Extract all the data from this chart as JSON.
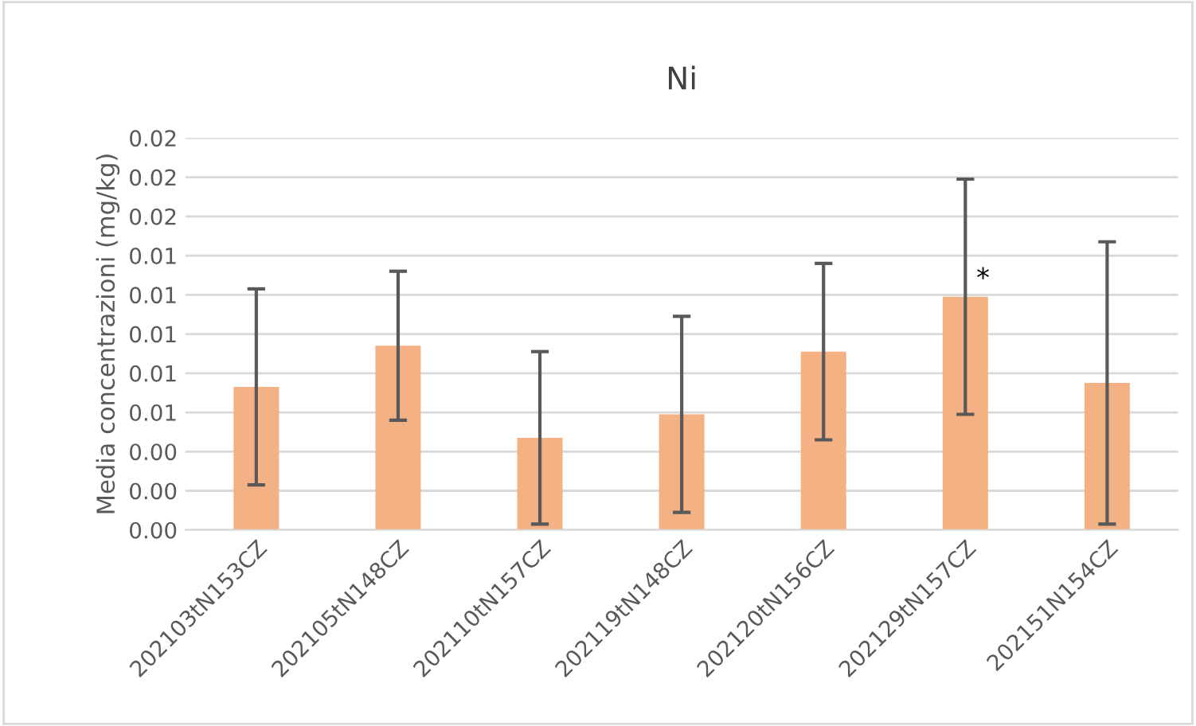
{
  "chart_data": {
    "type": "bar",
    "title": "Ni",
    "ylabel": "Media concentrazioni (mg/kg)",
    "categories": [
      "202103tN153CZ",
      "202105tN148CZ",
      "202110tN157CZ",
      "202119tN148CZ",
      "202120tN156CZ",
      "202129tN157CZ",
      "202151N154CZ"
    ],
    "values": [
      0.0073,
      0.0094,
      0.0047,
      0.0059,
      0.0091,
      0.0119,
      0.0075
    ],
    "errors": [
      0.005,
      0.0038,
      0.0044,
      0.005,
      0.0045,
      0.006,
      0.0072
    ],
    "color": "#f4b183",
    "ylim": [
      0,
      0.02
    ],
    "yticks": [
      {
        "value": 0,
        "label": "0.00"
      },
      {
        "value": 0.002,
        "label": "0.00"
      },
      {
        "value": 0.004,
        "label": "0.00"
      },
      {
        "value": 0.006,
        "label": "0.01"
      },
      {
        "value": 0.008,
        "label": "0.01"
      },
      {
        "value": 0.01,
        "label": "0.01"
      },
      {
        "value": 0.012,
        "label": "0.01"
      },
      {
        "value": 0.014,
        "label": "0.01"
      },
      {
        "value": 0.016,
        "label": "0.02"
      },
      {
        "value": 0.018,
        "label": "0.02"
      },
      {
        "value": 0.02,
        "label": "0.02"
      }
    ],
    "annotations": [
      {
        "text": "*",
        "x": "202129tN157CZ",
        "y": 0.0119
      }
    ],
    "grid": "y",
    "legend": false
  }
}
